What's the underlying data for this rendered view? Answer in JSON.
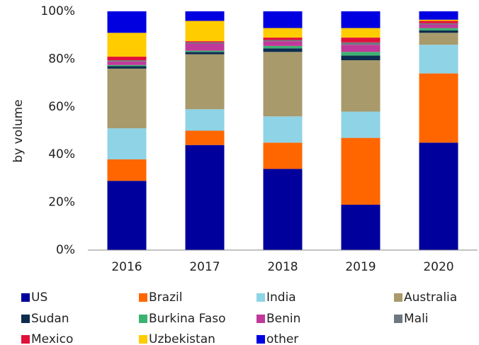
{
  "chart_data": {
    "type": "stacked_bar",
    "y_label": "by volume",
    "categories": [
      "2016",
      "2017",
      "2018",
      "2019",
      "2020"
    ],
    "series": [
      {
        "name": "US",
        "color": "#00009c",
        "values": [
          29,
          44,
          34,
          19,
          45
        ]
      },
      {
        "name": "Brazil",
        "color": "#ff6600",
        "values": [
          9,
          6,
          11,
          28,
          29
        ]
      },
      {
        "name": "India",
        "color": "#8fd3e6",
        "values": [
          13,
          9,
          11,
          11,
          12
        ]
      },
      {
        "name": "Australia",
        "color": "#a89a6a",
        "values": [
          25,
          23,
          27,
          21.5,
          5
        ]
      },
      {
        "name": "Sudan",
        "color": "#0d2d4f",
        "values": [
          1,
          1,
          1.5,
          2,
          1
        ]
      },
      {
        "name": "Burkina Faso",
        "color": "#3cb371",
        "values": [
          0.5,
          0.5,
          1,
          1.5,
          1
        ]
      },
      {
        "name": "Benin",
        "color": "#c0399a",
        "values": [
          1.5,
          3,
          2,
          3,
          1.5
        ]
      },
      {
        "name": "Mali",
        "color": "#6d7880",
        "values": [
          0.5,
          0.5,
          0.5,
          1,
          0.5
        ]
      },
      {
        "name": "Mexico",
        "color": "#e0103c",
        "values": [
          1.5,
          0.5,
          1,
          2,
          1
        ]
      },
      {
        "name": "Uzbekistan",
        "color": "#ffcc00",
        "values": [
          10,
          8.5,
          4,
          4,
          0.5
        ]
      },
      {
        "name": "other",
        "color": "#0000e0",
        "values": [
          9,
          4,
          7,
          7,
          3.5
        ]
      }
    ],
    "ylim": [
      0,
      100
    ],
    "yticks": [
      {
        "value": 0,
        "label": "0%"
      },
      {
        "value": 20,
        "label": "20%"
      },
      {
        "value": 40,
        "label": "40%"
      },
      {
        "value": 60,
        "label": "60%"
      },
      {
        "value": 80,
        "label": "80%"
      },
      {
        "value": 100,
        "label": "100%"
      }
    ],
    "legend": "bottom"
  }
}
